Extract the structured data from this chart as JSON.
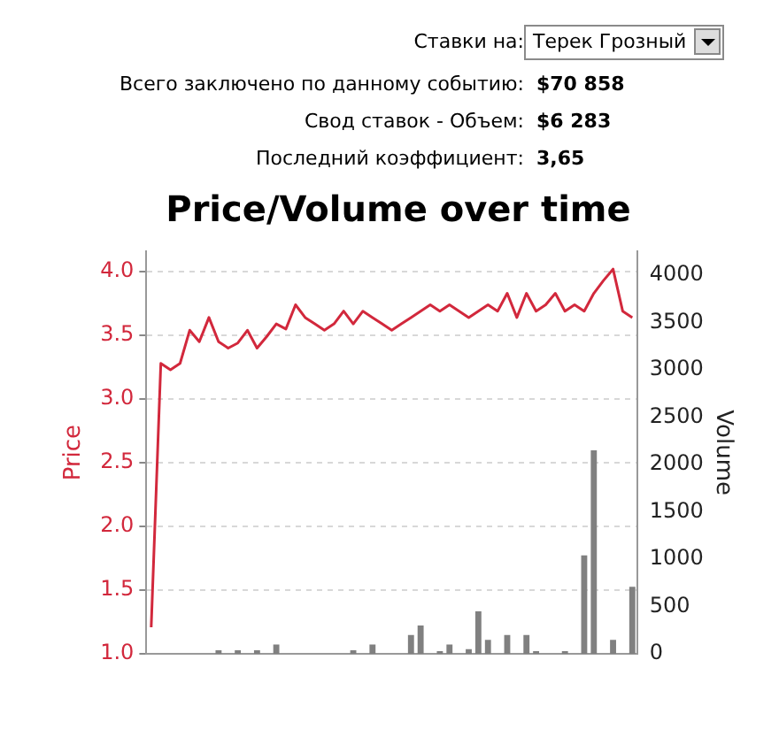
{
  "chart_data": {
    "type": "line",
    "title": "Price/Volume over time",
    "ylabel": "Price",
    "y2label": "Volume",
    "annotations": [
      "Ставки на:",
      "Терек Грозный",
      "Всего заключено по данному событию:",
      "$70 858",
      "Свод ставок - Объем:",
      "$6 283",
      "Последний коэффициент:",
      "3,65"
    ],
    "categories": [
      null,
      null,
      null,
      null,
      null,
      null,
      null,
      null,
      null,
      null,
      null,
      null,
      null,
      null,
      null,
      null,
      null,
      null,
      null,
      null,
      null,
      null,
      null,
      null,
      null,
      null,
      null,
      null,
      null,
      null,
      null,
      null,
      null,
      null,
      null,
      null,
      null,
      null,
      null,
      null,
      null,
      null,
      null,
      null,
      null,
      null,
      null,
      null,
      null,
      null,
      null
    ],
    "series": [
      {
        "color": "#d2283c",
        "values": [
          1.21,
          3.28,
          3.23,
          3.28,
          3.54,
          3.45,
          3.64,
          3.45,
          3.4,
          3.44,
          3.54,
          3.4,
          3.49,
          3.59,
          3.55,
          3.74,
          3.64,
          3.59,
          3.54,
          3.59,
          3.69,
          3.59,
          3.69,
          3.64,
          3.59,
          3.54,
          3.59,
          3.64,
          3.69,
          3.74,
          3.69,
          3.74,
          3.69,
          3.64,
          3.69,
          3.74,
          3.69,
          3.83,
          3.64,
          3.83,
          3.69,
          3.74,
          3.83,
          3.69,
          3.74,
          3.69,
          3.83,
          3.93,
          4.02,
          3.69,
          3.64
        ]
      },
      {
        "type": "bar",
        "axis": "y2",
        "color": "#808080",
        "values": [
          0,
          0,
          0,
          0,
          0,
          0,
          0,
          40,
          0,
          40,
          0,
          40,
          0,
          100,
          0,
          0,
          0,
          0,
          0,
          0,
          0,
          40,
          0,
          100,
          0,
          0,
          0,
          200,
          300,
          0,
          30,
          100,
          0,
          50,
          450,
          150,
          0,
          200,
          0,
          200,
          30,
          0,
          0,
          30,
          0,
          1040,
          2150,
          0,
          150,
          0,
          710
        ]
      }
    ],
    "ylim": [
      1,
      4.16
    ],
    "yticks": [
      {
        "value": 1,
        "label": "1.0"
      },
      {
        "value": 1.5,
        "label": "1.5"
      },
      {
        "value": 2,
        "label": "2.0"
      },
      {
        "value": 2.5,
        "label": "2.5"
      },
      {
        "value": 3,
        "label": "3.0"
      },
      {
        "value": 3.5,
        "label": "3.5"
      },
      {
        "value": 4,
        "label": "4.0"
      }
    ],
    "y2lim": [
      0,
      4250
    ],
    "y2ticks": [
      0,
      500,
      1000,
      1500,
      2000,
      2500,
      3000,
      3500,
      4000
    ],
    "grid": "y",
    "legend": false,
    "marker": "none",
    "line_style": "solid"
  }
}
